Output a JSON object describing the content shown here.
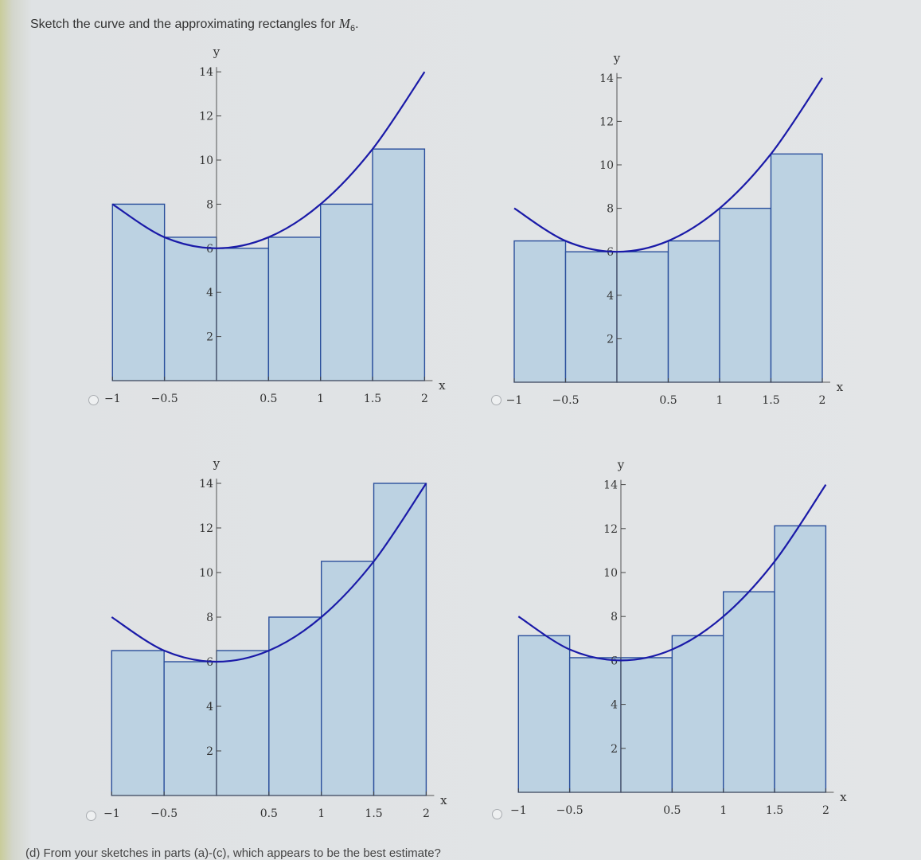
{
  "prompt": {
    "text": "Sketch the curve and the approximating rectangles for ",
    "symbol": "M",
    "subscript": "6",
    "end": "."
  },
  "footer": {
    "text": "(d) From your sketches in parts (a)-(c), which appears to be the best estimate?"
  },
  "chart_data": [
    {
      "type": "bar",
      "option": "option-1",
      "x_ticks": [
        "-1",
        "-0.5",
        "0.5",
        "1",
        "1.5",
        "2"
      ],
      "y_ticks": [
        "2",
        "4",
        "6",
        "8",
        "10",
        "12",
        "14"
      ],
      "xlabel": "x",
      "ylabel": "y",
      "xlim": [
        -1,
        2
      ],
      "ylim": [
        0,
        14
      ],
      "rect_left": [
        -1,
        -0.5,
        0,
        0.5,
        1,
        1.5
      ],
      "rect_width": 0.5,
      "values": [
        8,
        6.5,
        6,
        6.5,
        8,
        10.5
      ],
      "curve": [
        [
          -1,
          8
        ],
        [
          -0.5,
          6.5
        ],
        [
          0,
          6
        ],
        [
          0.5,
          6.5
        ],
        [
          1,
          8
        ],
        [
          1.5,
          10.5
        ],
        [
          2,
          14
        ]
      ]
    },
    {
      "type": "bar",
      "option": "option-2",
      "x_ticks": [
        "-1",
        "-0.5",
        "0.5",
        "1",
        "1.5",
        "2"
      ],
      "y_ticks": [
        "2",
        "4",
        "6",
        "8",
        "10",
        "12",
        "14"
      ],
      "xlabel": "x",
      "ylabel": "y",
      "xlim": [
        -1,
        2
      ],
      "ylim": [
        0,
        14
      ],
      "rect_left": [
        -1,
        -0.5,
        0,
        0.5,
        1,
        1.5
      ],
      "rect_width": 0.5,
      "values": [
        6.5,
        6,
        6,
        6.5,
        8,
        10.5
      ],
      "curve": [
        [
          -1,
          8
        ],
        [
          -0.5,
          6.5
        ],
        [
          0,
          6
        ],
        [
          0.5,
          6.5
        ],
        [
          1,
          8
        ],
        [
          1.5,
          10.5
        ],
        [
          2,
          14
        ]
      ]
    },
    {
      "type": "bar",
      "option": "option-3",
      "x_ticks": [
        "-1",
        "-0.5",
        "0.5",
        "1",
        "1.5",
        "2"
      ],
      "y_ticks": [
        "2",
        "4",
        "6",
        "8",
        "10",
        "12",
        "14"
      ],
      "xlabel": "x",
      "ylabel": "y",
      "xlim": [
        -1,
        2
      ],
      "ylim": [
        0,
        14
      ],
      "rect_left": [
        -1,
        -0.5,
        0,
        0.5,
        1,
        1.5
      ],
      "rect_width": 0.5,
      "values": [
        6.5,
        6,
        6.5,
        8,
        10.5,
        14
      ],
      "curve": [
        [
          -1,
          8
        ],
        [
          -0.5,
          6.5
        ],
        [
          0,
          6
        ],
        [
          0.5,
          6.5
        ],
        [
          1,
          8
        ],
        [
          1.5,
          10.5
        ],
        [
          2,
          14
        ]
      ]
    },
    {
      "type": "bar",
      "option": "option-4",
      "x_ticks": [
        "-1",
        "-0.5",
        "0.5",
        "1",
        "1.5",
        "2"
      ],
      "y_ticks": [
        "2",
        "4",
        "6",
        "8",
        "10",
        "12",
        "14"
      ],
      "xlabel": "x",
      "ylabel": "y",
      "xlim": [
        -1,
        2
      ],
      "ylim": [
        0,
        14
      ],
      "rect_left": [
        -1,
        -0.5,
        0,
        0.5,
        1,
        1.5
      ],
      "rect_width": 0.5,
      "values": [
        7.125,
        6.125,
        6.125,
        7.125,
        9.125,
        12.125
      ],
      "curve": [
        [
          -1,
          8
        ],
        [
          -0.5,
          6.5
        ],
        [
          0,
          6
        ],
        [
          0.5,
          6.5
        ],
        [
          1,
          8
        ],
        [
          1.5,
          10.5
        ],
        [
          2,
          14
        ]
      ]
    }
  ]
}
